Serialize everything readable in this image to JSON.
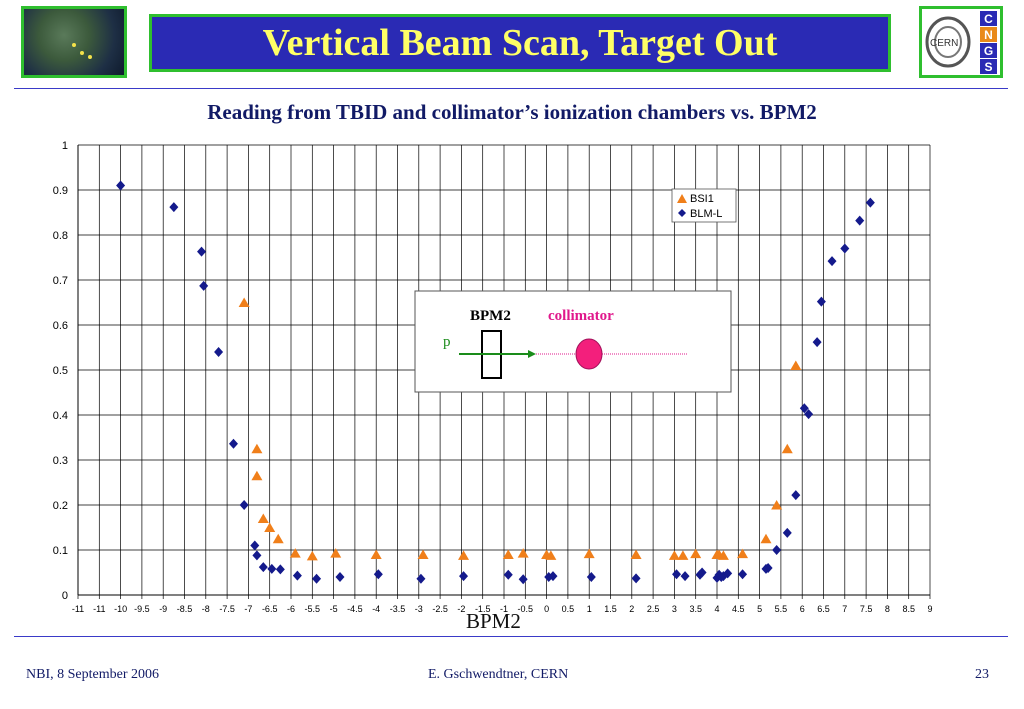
{
  "slide": {
    "title": "Vertical Beam Scan, Target Out",
    "subtitle": "Reading from TBID and collimator’s ionization chambers vs. BPM2",
    "footer_left": "NBI, 8 September 2006",
    "footer_center": "E. Gschwendtner, CERN",
    "footer_right": "23"
  },
  "logo_right": {
    "text": "CERN",
    "letters": [
      "C",
      "N",
      "G",
      "S"
    ]
  },
  "inset": {
    "bpm_label": "BPM2",
    "collimator_label": "collimator",
    "beam_label": "p"
  },
  "colors": {
    "bsi1": "#f07f1a",
    "blml": "#141a8c",
    "title_bg": "#2a2ab4",
    "title_text": "#ffff66",
    "frame": "#2fbf2f"
  },
  "chart_data": {
    "type": "scatter",
    "xlabel": "BPM2",
    "ylabel": "",
    "xlim": [
      -11,
      9
    ],
    "ylim": [
      0,
      1
    ],
    "x_ticks": [
      "-11",
      "-11",
      "-10",
      "-9.5",
      "-9",
      "-8.5",
      "-8",
      "-7.5",
      "-7",
      "-6.5",
      "-6",
      "-5.5",
      "-5",
      "-4.5",
      "-4",
      "-3.5",
      "-3",
      "-2.5",
      "-2",
      "-1.5",
      "-1",
      "-0.5",
      "0",
      "0.5",
      "1",
      "1.5",
      "2",
      "2.5",
      "3",
      "3.5",
      "4",
      "4.5",
      "5",
      "5.5",
      "6",
      "6.5",
      "7",
      "7.5",
      "8",
      "8.5",
      "9"
    ],
    "y_ticks": [
      "0",
      "0.1",
      "0.2",
      "0.3",
      "0.4",
      "0.5",
      "0.6",
      "0.7",
      "0.8",
      "0.9",
      "1"
    ],
    "legend": "top-right",
    "grid": true,
    "series": [
      {
        "name": "BSI1",
        "marker": "triangle",
        "color": "#f07f1a",
        "x": [
          -7.1,
          -6.8,
          -6.8,
          -6.65,
          -6.5,
          -6.3,
          -5.9,
          -5.5,
          -4.95,
          -4.0,
          -2.9,
          -1.95,
          -0.9,
          -0.55,
          0.0,
          0.1,
          1.0,
          2.1,
          3.0,
          3.2,
          3.5,
          4.0,
          4.05,
          4.15,
          4.6,
          5.15,
          5.4,
          5.65,
          5.85
        ],
        "y": [
          0.65,
          0.325,
          0.265,
          0.17,
          0.15,
          0.125,
          0.093,
          0.087,
          0.093,
          0.09,
          0.09,
          0.088,
          0.09,
          0.093,
          0.09,
          0.088,
          0.092,
          0.09,
          0.088,
          0.088,
          0.092,
          0.09,
          0.09,
          0.088,
          0.092,
          0.125,
          0.2,
          0.325,
          0.51
        ]
      },
      {
        "name": "BLM-L",
        "marker": "diamond",
        "color": "#141a8c",
        "x": [
          -10.0,
          -8.75,
          -8.1,
          -8.05,
          -7.7,
          -7.35,
          -7.1,
          -6.85,
          -6.8,
          -6.65,
          -6.45,
          -6.25,
          -5.85,
          -5.4,
          -4.85,
          -3.95,
          -2.95,
          -1.95,
          -0.9,
          -0.55,
          0.05,
          0.15,
          1.05,
          2.1,
          3.05,
          3.25,
          3.6,
          3.65,
          4.0,
          4.05,
          4.1,
          4.15,
          4.25,
          4.6,
          5.15,
          5.2,
          5.4,
          5.65,
          5.85,
          6.05,
          6.15,
          6.35,
          6.45,
          6.7,
          7.0,
          7.35,
          7.6
        ],
        "y": [
          0.91,
          0.862,
          0.763,
          0.687,
          0.54,
          0.336,
          0.2,
          0.11,
          0.088,
          0.062,
          0.058,
          0.057,
          0.043,
          0.036,
          0.04,
          0.046,
          0.036,
          0.042,
          0.045,
          0.035,
          0.04,
          0.042,
          0.04,
          0.037,
          0.046,
          0.042,
          0.045,
          0.05,
          0.038,
          0.045,
          0.04,
          0.042,
          0.048,
          0.046,
          0.058,
          0.06,
          0.1,
          0.138,
          0.222,
          0.415,
          0.402,
          0.562,
          0.652,
          0.742,
          0.77,
          0.832,
          0.872
        ]
      }
    ]
  }
}
